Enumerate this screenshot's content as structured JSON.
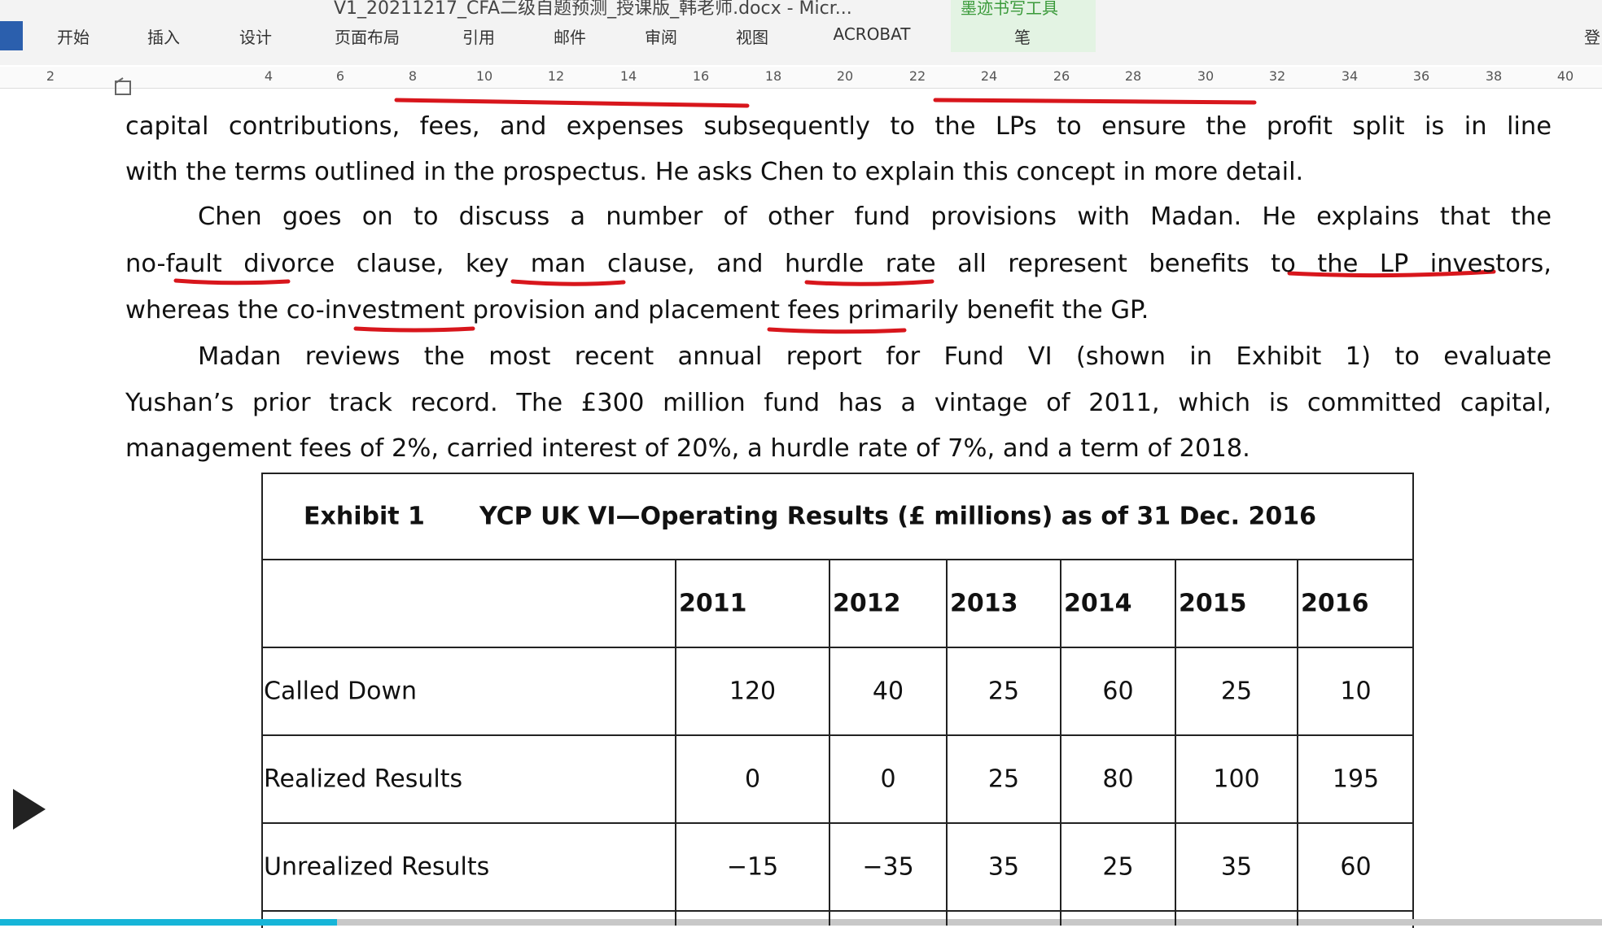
{
  "window": {
    "title": "V1_20211217_CFA二级自题预测_授课版_韩老师.docx - Micr...",
    "tool_group": "墨迹书写工具",
    "right_cut": "登"
  },
  "ribbon": {
    "tabs": [
      "开始",
      "插入",
      "设计",
      "页面布局",
      "引用",
      "邮件",
      "审阅",
      "视图",
      "ACROBAT",
      "笔"
    ]
  },
  "ruler": [
    "2",
    "4",
    "6",
    "8",
    "10",
    "12",
    "14",
    "16",
    "18",
    "20",
    "22",
    "24",
    "26",
    "28",
    "30",
    "32",
    "34",
    "36",
    "38",
    "40"
  ],
  "document": {
    "paragraphs": [
      {
        "indent": false,
        "lines": [
          "capital contributions, fees, and expenses subsequently to the LPs to ensure the profit split is in line",
          "with the terms outlined in the prospectus. He asks Chen to explain this concept in more detail."
        ]
      },
      {
        "indent": true,
        "lines": [
          "Chen goes on to discuss a number of other fund provisions with Madan. He explains that the",
          "no-fault divorce clause, key man clause, and hurdle rate all represent benefits to the LP investors,",
          "whereas the co-investment provision and placement fees primarily benefit the GP."
        ]
      },
      {
        "indent": true,
        "lines": [
          "Madan reviews the most recent annual report for Fund VI (shown in Exhibit 1) to evaluate",
          "Yushan’s prior track record. The £300 million fund has a vintage of 2011, which is committed capital,",
          "management fees of 2%, carried interest of 20%, a hurdle rate of 7%, and a term of 2018."
        ]
      }
    ],
    "table": {
      "exhibit": "Exhibit 1",
      "title": "YCP UK VI—Operating Results (£ millions) as of 31 Dec. 2016",
      "columns": [
        "2011",
        "2012",
        "2013",
        "2014",
        "2015",
        "2016"
      ],
      "rows": [
        {
          "label": "Called Down",
          "values": [
            "120",
            "40",
            "25",
            "60",
            "25",
            "10"
          ]
        },
        {
          "label": "Realized Results",
          "values": [
            "0",
            "0",
            "25",
            "80",
            "100",
            "195"
          ]
        },
        {
          "label": "Unrealized Results",
          "values": [
            "−15",
            "−35",
            "35",
            "25",
            "35",
            "60"
          ]
        }
      ]
    }
  }
}
